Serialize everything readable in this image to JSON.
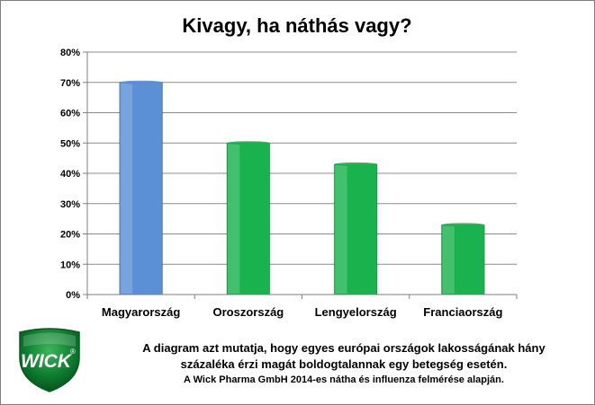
{
  "chart_data": {
    "type": "bar",
    "title": "Kivagy, ha náthás vagy?",
    "categories": [
      "Magyarország",
      "Oroszország",
      "Lengyelország",
      "Franciaország"
    ],
    "values": [
      70,
      50,
      43,
      23
    ],
    "value_unit": "%",
    "ylim": [
      0,
      80
    ],
    "yticks": [
      "0%",
      "10%",
      "20%",
      "30%",
      "40%",
      "50%",
      "60%",
      "70%",
      "80%"
    ],
    "grid": true,
    "legend": "none",
    "bar_colors": [
      "#5b8fd6",
      "#1ab24f",
      "#1ab24f",
      "#1ab24f"
    ]
  },
  "caption": {
    "line1": "A diagram azt mutatja, hogy egyes európai  országok lakosságának hány",
    "line2": "százaléka érzi magát boldogtalannak egy betegség esetén.",
    "line3": "A Wick Pharma GmbH 2014-es nátha és influenza felmérése alapján."
  },
  "logo": {
    "text": "WICK",
    "mark": "®",
    "color": "#0c7a2e"
  }
}
